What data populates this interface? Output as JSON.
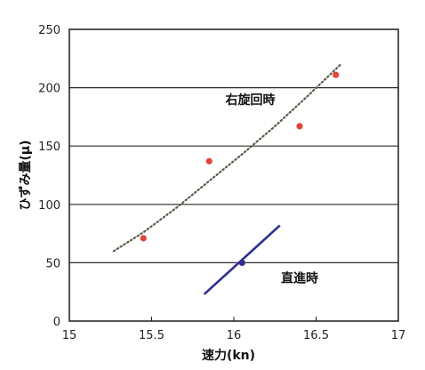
{
  "chart_data": {
    "type": "scatter",
    "xlabel": "速力(kn)",
    "ylabel": "ひずみ量(μ)",
    "xlim": [
      15,
      17
    ],
    "ylim": [
      0,
      250
    ],
    "xticks": [
      15,
      15.5,
      16,
      16.5,
      17
    ],
    "yticks": [
      0,
      50,
      100,
      150,
      200,
      250
    ],
    "xtick_labels": [
      "15",
      "15.5",
      "16",
      "16.5",
      "17"
    ],
    "ytick_labels": [
      "0",
      "50",
      "100",
      "150",
      "200",
      "250"
    ],
    "grid": "horizontal",
    "series": [
      {
        "name": "右旋回時",
        "color": "#e0453b",
        "points": [
          {
            "x": 15.45,
            "y": 71
          },
          {
            "x": 15.85,
            "y": 137
          },
          {
            "x": 16.4,
            "y": 167
          },
          {
            "x": 16.62,
            "y": 211
          }
        ],
        "trend": {
          "style": "dotted",
          "color": "#5a5a4a",
          "points": [
            {
              "x": 15.27,
              "y": 60
            },
            {
              "x": 15.45,
              "y": 76
            },
            {
              "x": 15.65,
              "y": 97
            },
            {
              "x": 15.85,
              "y": 120
            },
            {
              "x": 16.05,
              "y": 143
            },
            {
              "x": 16.25,
              "y": 167
            },
            {
              "x": 16.45,
              "y": 193
            },
            {
              "x": 16.65,
              "y": 220
            }
          ]
        }
      },
      {
        "name": "直進時",
        "color": "#2d2f8f",
        "points": [
          {
            "x": 16.05,
            "y": 50
          }
        ],
        "trend": {
          "style": "solid",
          "color": "#2d2f8f",
          "points": [
            {
              "x": 15.82,
              "y": 23
            },
            {
              "x": 16.28,
              "y": 82
            }
          ]
        }
      }
    ]
  }
}
